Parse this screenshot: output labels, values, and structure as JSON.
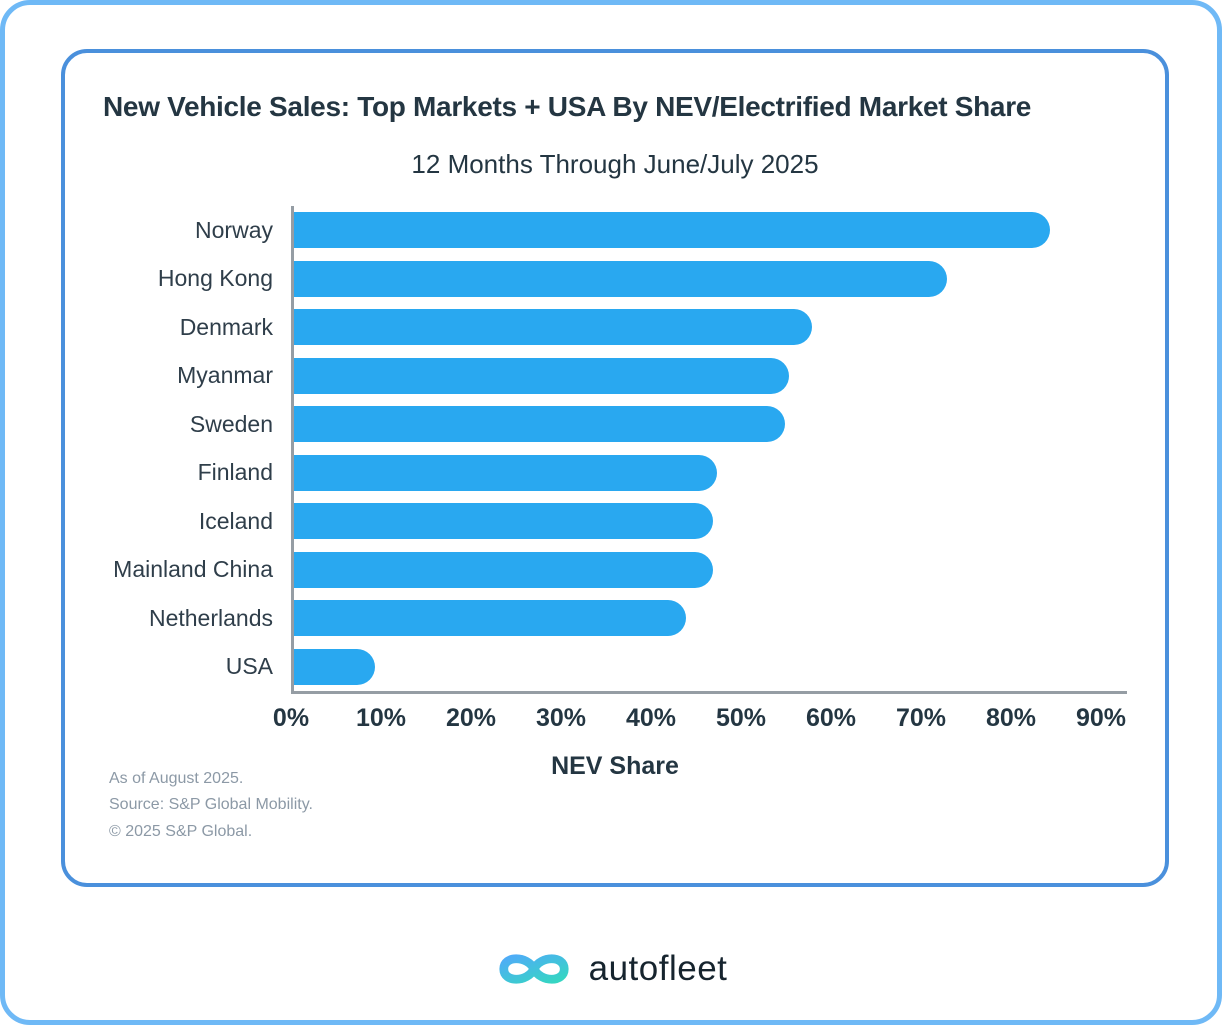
{
  "theme": {
    "outer_border": "#6FB9F6",
    "inner_border": "#4A90DC",
    "bar_color": "#29A8F0",
    "text_dark": "#243642",
    "label_color": "#2F3E4A",
    "axis_color": "#959DA4",
    "footnote_color": "#8C99A6",
    "logo_blue": "#4FACF7",
    "logo_teal": "#35D6C2"
  },
  "header": {
    "title": "New Vehicle Sales: Top Markets + USA By NEV/Electrified Market Share",
    "subtitle": "12 Months Through June/July 2025"
  },
  "chart_data": {
    "type": "bar",
    "orientation": "horizontal",
    "title": "New Vehicle Sales: Top Markets + USA By NEV/Electrified Market Share",
    "subtitle": "12 Months Through June/July 2025",
    "xlabel": "NEV Share",
    "xlim": [
      0,
      90
    ],
    "x_tick_labels": [
      "0%",
      "10%",
      "20%",
      "30%",
      "40%",
      "50%",
      "60%",
      "70%",
      "80%",
      "90%"
    ],
    "categories": [
      "Norway",
      "Hong Kong",
      "Denmark",
      "Myanmar",
      "Sweden",
      "Finland",
      "Iceland",
      "Mainland China",
      "Netherlands",
      "USA"
    ],
    "values": [
      84,
      72.5,
      57.5,
      55,
      54.5,
      47,
      46.5,
      46.5,
      43.5,
      9
    ],
    "bar_color": "#29A8F0",
    "grid": false,
    "legend": false
  },
  "footnotes": {
    "lines": [
      "As of August 2025.",
      "Source: S&P Global Mobility.",
      "© 2025 S&P Global."
    ]
  },
  "brand": {
    "name": "autofleet",
    "logo_icon": "infinity-loop-icon"
  }
}
